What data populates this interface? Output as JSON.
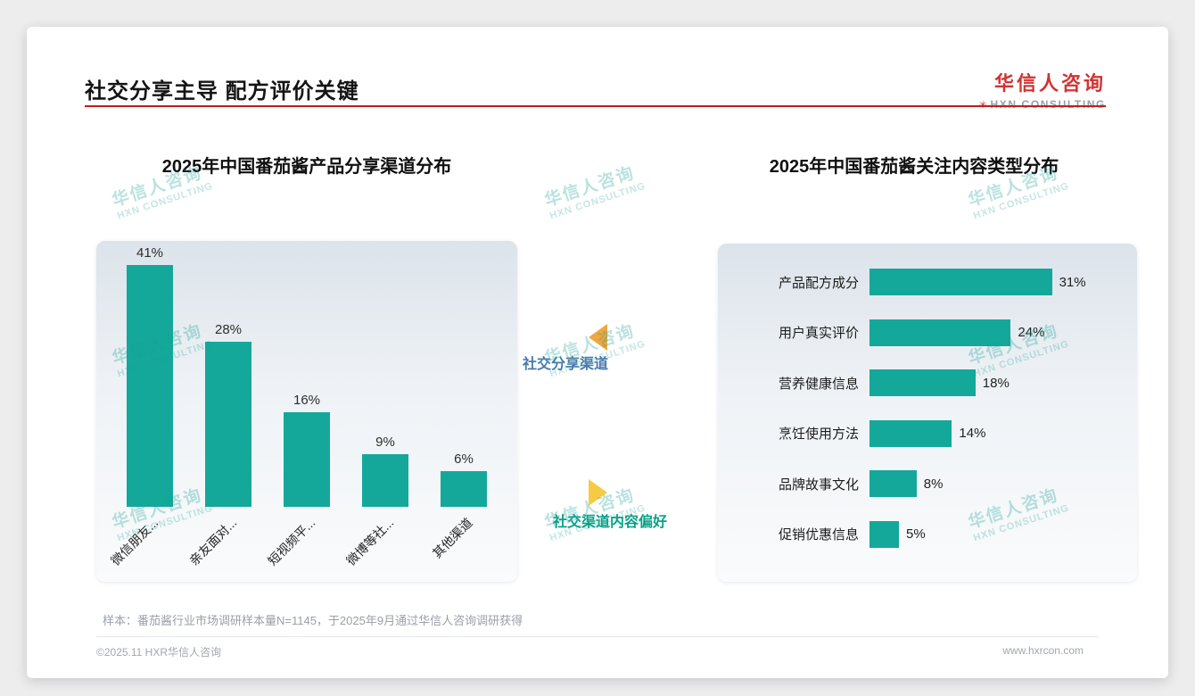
{
  "page": {
    "title": "社交分享主导 配方评价关键",
    "logo": {
      "cn": "华信人咨询",
      "en": "HXN CONSULTING",
      "mark": "✳"
    },
    "watermark": {
      "cn": "华信人咨询",
      "en": "HXN CONSULTING"
    },
    "footer": {
      "note": "样本：番茄酱行业市场调研样本量N=1145，于2025年9月通过华信人咨询调研获得",
      "copyright": "©2025.11 HXR华信人咨询",
      "website": "www.hxrcon.com"
    }
  },
  "annotations": {
    "left_arrow_label": "社交分享渠道",
    "right_arrow_label": "社交渠道内容偏好"
  },
  "colors": {
    "bar_teal": "#14A89B",
    "accent_red": "#BF1D1D",
    "arrow_orange": "#F0A83E",
    "arrow_yellow": "#F5CB45",
    "annotation_blue": "#4A7AAD",
    "annotation_green": "#0AA188"
  },
  "chart_data": [
    {
      "type": "bar",
      "title": "2025年中国番茄酱产品分享渠道分布",
      "categories": [
        "微信朋友...",
        "亲友面对...",
        "短视频平...",
        "微博等社...",
        "其他渠道"
      ],
      "values": [
        41,
        28,
        16,
        9,
        6
      ],
      "unit": "%",
      "ylim": [
        0,
        45
      ],
      "grid": false,
      "legend": false
    },
    {
      "type": "bar-horizontal",
      "title": "2025年中国番茄酱关注内容类型分布",
      "categories": [
        "产品配方成分",
        "用户真实评价",
        "营养健康信息",
        "烹饪使用方法",
        "品牌故事文化",
        "促销优惠信息"
      ],
      "values": [
        31,
        24,
        18,
        14,
        8,
        5
      ],
      "unit": "%",
      "xlim": [
        0,
        35
      ],
      "grid": false,
      "legend": false
    }
  ]
}
